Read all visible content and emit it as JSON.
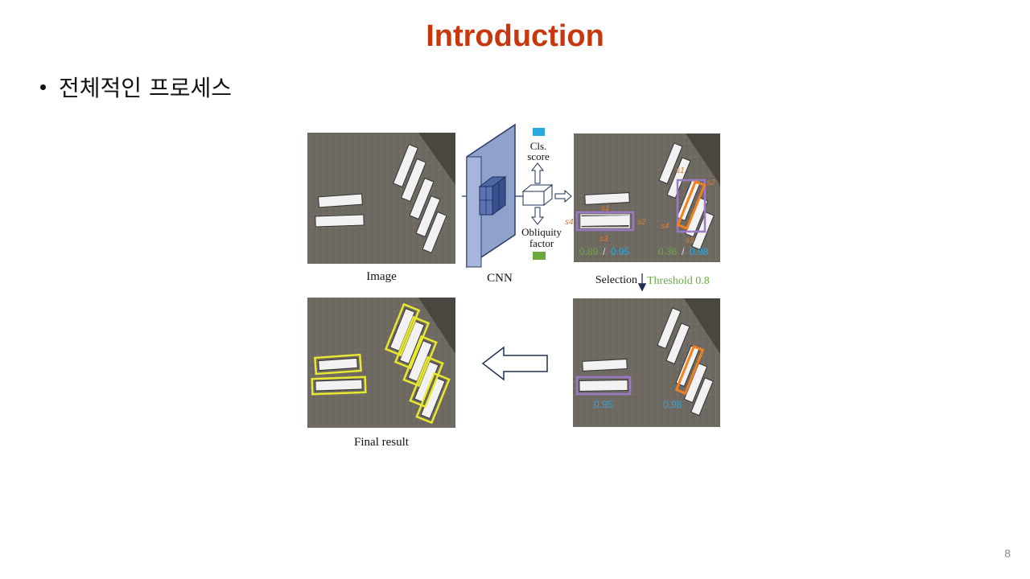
{
  "slide": {
    "title": "Introduction",
    "bullet": "전체적인 프로세스",
    "page_number": "8"
  },
  "figure": {
    "image_label": "Image",
    "cnn_label": "CNN",
    "cls_score_label_1": "Cls.",
    "cls_score_label_2": "score",
    "obliquity_label_1": "Obliquity",
    "obliquity_label_2": "factor",
    "selection_label": "Selection",
    "threshold_label": "Threshold 0.8",
    "final_label": "Final result",
    "score_left": "0.89",
    "score_left_cls": "0.95",
    "score_right": "0.36",
    "score_right_cls": "0.98",
    "selected_left": "0.95",
    "selected_right": "0.98",
    "side_labels": {
      "s1": "s1",
      "s2": "s2",
      "s3": "s3",
      "s4": "s4"
    },
    "colors": {
      "cls_score": "#29a9e0",
      "obliquity": "#6aaa3c",
      "purple_box": "#9b78c8",
      "orange_box": "#f08020",
      "yellow_box": "#e8e830",
      "cnn_block": "#8fa2cc"
    }
  }
}
